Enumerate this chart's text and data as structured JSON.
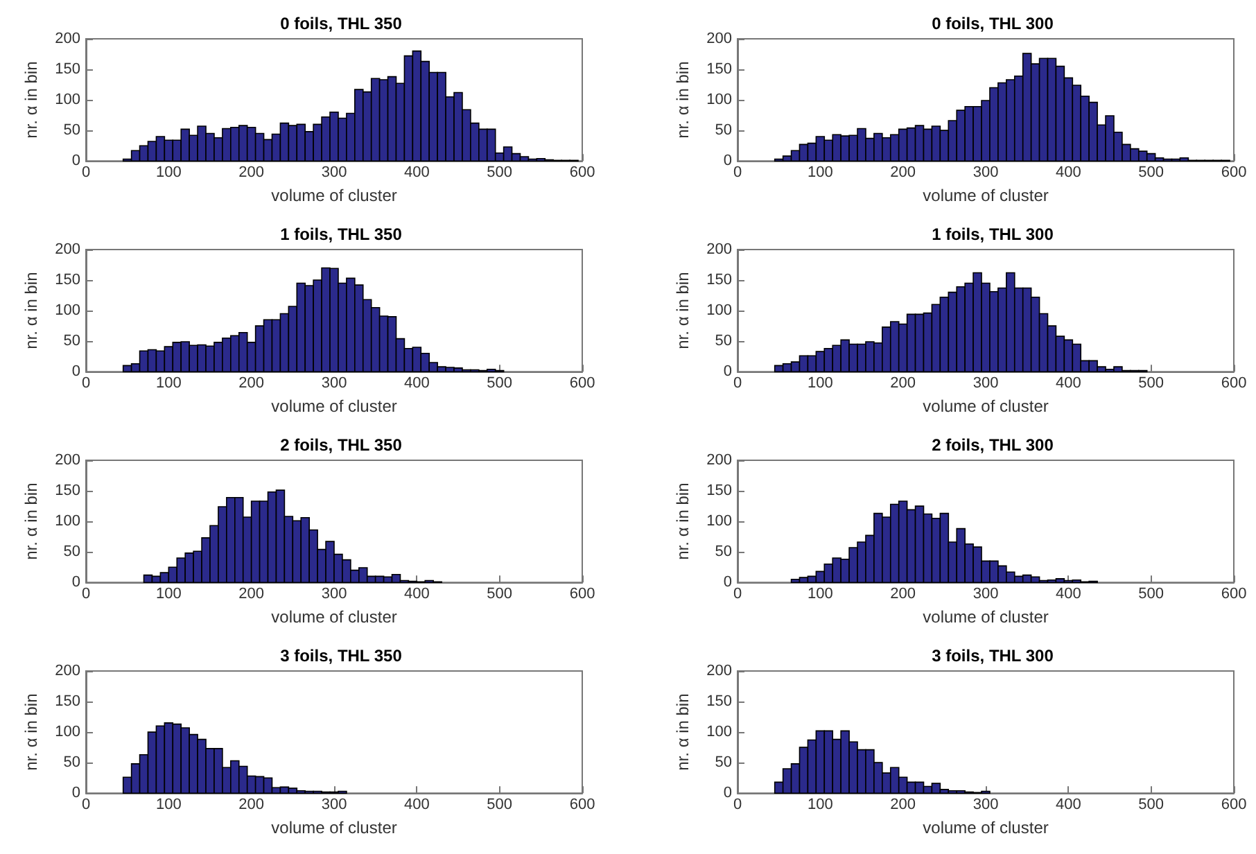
{
  "chart_data": [
    {
      "type": "histogram",
      "title": "0 foils, THL 350",
      "xlabel": "volume of cluster",
      "ylabel": "nr. α in bin",
      "color": "#2b2a8c",
      "xlim": [
        0,
        600
      ],
      "xticks": [
        0,
        100,
        200,
        300,
        400,
        500,
        600
      ],
      "ylim": [
        0,
        200
      ],
      "yticks": [
        0,
        50,
        100,
        150,
        200
      ],
      "bins": [
        45,
        55,
        65,
        75,
        85,
        95,
        105,
        115,
        125,
        135,
        145,
        155,
        165,
        175,
        185,
        195,
        205,
        215,
        225,
        235,
        245,
        255,
        265,
        275,
        285,
        295,
        305,
        315,
        325,
        335,
        345,
        355,
        365,
        375,
        385,
        395,
        405,
        415,
        425,
        435,
        445,
        455,
        465,
        475,
        485,
        495,
        505,
        515,
        525,
        535,
        545,
        555,
        565,
        575,
        585,
        595
      ],
      "values": [
        3,
        17,
        25,
        32,
        40,
        34,
        34,
        52,
        42,
        57,
        45,
        38,
        53,
        55,
        58,
        55,
        45,
        35,
        44,
        62,
        58,
        60,
        48,
        60,
        72,
        80,
        70,
        78,
        117,
        113,
        135,
        133,
        138,
        127,
        172,
        180,
        163,
        145,
        145,
        105,
        112,
        84,
        62,
        52,
        52,
        13,
        23,
        12,
        7,
        3,
        4,
        2,
        1,
        1,
        1
      ]
    },
    {
      "type": "histogram",
      "title": "0 foils, THL 300",
      "xlabel": "volume of cluster",
      "ylabel": "nr. α in bin",
      "color": "#2b2a8c",
      "xlim": [
        0,
        600
      ],
      "xticks": [
        0,
        100,
        200,
        300,
        400,
        500,
        600
      ],
      "ylim": [
        0,
        200
      ],
      "yticks": [
        0,
        50,
        100,
        150,
        200
      ],
      "bins": [
        45,
        55,
        65,
        75,
        85,
        95,
        105,
        115,
        125,
        135,
        145,
        155,
        165,
        175,
        185,
        195,
        205,
        215,
        225,
        235,
        245,
        255,
        265,
        275,
        285,
        295,
        305,
        315,
        325,
        335,
        345,
        355,
        365,
        375,
        385,
        395,
        405,
        415,
        425,
        435,
        445,
        455,
        465,
        475,
        485,
        495,
        505,
        515,
        525,
        535,
        545,
        555,
        565,
        575,
        585,
        595
      ],
      "values": [
        3,
        8,
        17,
        27,
        29,
        40,
        34,
        43,
        41,
        42,
        53,
        37,
        45,
        38,
        43,
        52,
        54,
        58,
        52,
        57,
        50,
        66,
        83,
        89,
        89,
        99,
        120,
        128,
        133,
        139,
        176,
        159,
        168,
        168,
        155,
        136,
        124,
        106,
        96,
        59,
        74,
        47,
        27,
        20,
        16,
        12,
        5,
        3,
        3,
        5,
        1,
        1,
        1,
        1,
        1
      ]
    },
    {
      "type": "histogram",
      "title": "1 foils, THL 350",
      "xlabel": "volume of cluster",
      "ylabel": "nr. α in bin",
      "color": "#2b2a8c",
      "xlim": [
        0,
        600
      ],
      "xticks": [
        0,
        100,
        200,
        300,
        400,
        500,
        600
      ],
      "ylim": [
        0,
        200
      ],
      "yticks": [
        0,
        50,
        100,
        150,
        200
      ],
      "bins": [
        45,
        55,
        65,
        75,
        85,
        95,
        105,
        115,
        125,
        135,
        145,
        155,
        165,
        175,
        185,
        195,
        205,
        215,
        225,
        235,
        245,
        255,
        265,
        275,
        285,
        295,
        305,
        315,
        325,
        335,
        345,
        355,
        365,
        375,
        385,
        395,
        405,
        415,
        425,
        435,
        445,
        455,
        465,
        475,
        485,
        495,
        505
      ],
      "values": [
        10,
        13,
        34,
        36,
        34,
        41,
        48,
        49,
        43,
        44,
        42,
        48,
        55,
        59,
        64,
        48,
        75,
        85,
        85,
        95,
        107,
        145,
        141,
        150,
        170,
        169,
        145,
        153,
        142,
        118,
        105,
        91,
        90,
        54,
        38,
        40,
        30,
        15,
        8,
        7,
        6,
        3,
        3,
        2,
        4,
        2
      ]
    },
    {
      "type": "histogram",
      "title": "1 foils, THL 300",
      "xlabel": "volume of cluster",
      "ylabel": "nr. α in bin",
      "color": "#2b2a8c",
      "xlim": [
        0,
        600
      ],
      "xticks": [
        0,
        100,
        200,
        300,
        400,
        500,
        600
      ],
      "ylim": [
        0,
        200
      ],
      "yticks": [
        0,
        50,
        100,
        150,
        200
      ],
      "bins": [
        45,
        55,
        65,
        75,
        85,
        95,
        105,
        115,
        125,
        135,
        145,
        155,
        165,
        175,
        185,
        195,
        205,
        215,
        225,
        235,
        245,
        255,
        265,
        275,
        285,
        295,
        305,
        315,
        325,
        335,
        345,
        355,
        365,
        375,
        385,
        395,
        405,
        415,
        425,
        435,
        445,
        455,
        465,
        475,
        485,
        495
      ],
      "values": [
        10,
        13,
        16,
        26,
        26,
        33,
        38,
        43,
        52,
        45,
        45,
        49,
        47,
        73,
        82,
        78,
        94,
        94,
        96,
        110,
        122,
        130,
        139,
        145,
        162,
        145,
        131,
        137,
        162,
        137,
        137,
        122,
        95,
        75,
        58,
        52,
        45,
        18,
        18,
        8,
        4,
        8,
        2,
        2,
        2
      ]
    },
    {
      "type": "histogram",
      "title": "2 foils, THL 350",
      "xlabel": "volume of cluster",
      "ylabel": "nr. α in bin",
      "color": "#2b2a8c",
      "xlim": [
        0,
        600
      ],
      "xticks": [
        0,
        100,
        200,
        300,
        400,
        500,
        600
      ],
      "ylim": [
        0,
        200
      ],
      "yticks": [
        0,
        50,
        100,
        150,
        200
      ],
      "bins": [
        70,
        80,
        90,
        100,
        110,
        120,
        130,
        140,
        150,
        160,
        170,
        180,
        190,
        200,
        210,
        220,
        230,
        240,
        250,
        260,
        270,
        280,
        290,
        300,
        310,
        320,
        330,
        340,
        350,
        360,
        370,
        380,
        390,
        400,
        410,
        420,
        430
      ],
      "values": [
        12,
        10,
        16,
        25,
        40,
        48,
        51,
        73,
        93,
        124,
        139,
        139,
        107,
        133,
        133,
        148,
        151,
        108,
        101,
        106,
        86,
        54,
        67,
        46,
        37,
        20,
        24,
        10,
        10,
        9,
        13,
        3,
        2,
        1,
        3,
        1
      ]
    },
    {
      "type": "histogram",
      "title": "2 foils, THL 300",
      "xlabel": "volume of cluster",
      "ylabel": "nr. α in bin",
      "color": "#2b2a8c",
      "xlim": [
        0,
        600
      ],
      "xticks": [
        0,
        100,
        200,
        300,
        400,
        500,
        600
      ],
      "ylim": [
        0,
        200
      ],
      "yticks": [
        0,
        50,
        100,
        150,
        200
      ],
      "bins": [
        65,
        75,
        85,
        95,
        105,
        115,
        125,
        135,
        145,
        155,
        165,
        175,
        185,
        195,
        205,
        215,
        225,
        235,
        245,
        255,
        265,
        275,
        285,
        295,
        305,
        315,
        325,
        335,
        345,
        355,
        365,
        375,
        385,
        395,
        405,
        415,
        425,
        435
      ],
      "values": [
        5,
        8,
        10,
        18,
        30,
        40,
        38,
        57,
        66,
        77,
        113,
        107,
        128,
        133,
        119,
        125,
        112,
        105,
        113,
        66,
        88,
        63,
        58,
        35,
        35,
        27,
        17,
        10,
        12,
        9,
        3,
        4,
        6,
        3,
        4,
        1,
        2
      ]
    },
    {
      "type": "histogram",
      "title": "3 foils, THL 350",
      "xlabel": "volume of cluster",
      "ylabel": "nr. α in bin",
      "color": "#2b2a8c",
      "xlim": [
        0,
        600
      ],
      "xticks": [
        0,
        100,
        200,
        300,
        400,
        500,
        600
      ],
      "ylim": [
        0,
        200
      ],
      "yticks": [
        0,
        50,
        100,
        150,
        200
      ],
      "bins": [
        45,
        55,
        65,
        75,
        85,
        95,
        105,
        115,
        125,
        135,
        145,
        155,
        165,
        175,
        185,
        195,
        205,
        215,
        225,
        235,
        245,
        255,
        265,
        275,
        285,
        295,
        305,
        315
      ],
      "values": [
        26,
        48,
        63,
        100,
        110,
        115,
        113,
        107,
        96,
        88,
        73,
        73,
        42,
        53,
        44,
        28,
        27,
        25,
        9,
        10,
        8,
        4,
        3,
        3,
        2,
        2,
        3
      ]
    },
    {
      "type": "histogram",
      "title": "3 foils, THL 300",
      "xlabel": "volume of cluster",
      "ylabel": "nr. α in bin",
      "color": "#2b2a8c",
      "xlim": [
        0,
        600
      ],
      "xticks": [
        0,
        100,
        200,
        300,
        400,
        500,
        600
      ],
      "ylim": [
        0,
        200
      ],
      "yticks": [
        0,
        50,
        100,
        150,
        200
      ],
      "bins": [
        45,
        55,
        65,
        75,
        85,
        95,
        105,
        115,
        125,
        135,
        145,
        155,
        165,
        175,
        185,
        195,
        205,
        215,
        225,
        235,
        245,
        255,
        265,
        275,
        285,
        295,
        305
      ],
      "values": [
        18,
        40,
        48,
        75,
        87,
        102,
        102,
        88,
        102,
        84,
        71,
        71,
        50,
        33,
        42,
        26,
        18,
        18,
        11,
        16,
        6,
        4,
        4,
        2,
        1,
        3
      ]
    }
  ]
}
